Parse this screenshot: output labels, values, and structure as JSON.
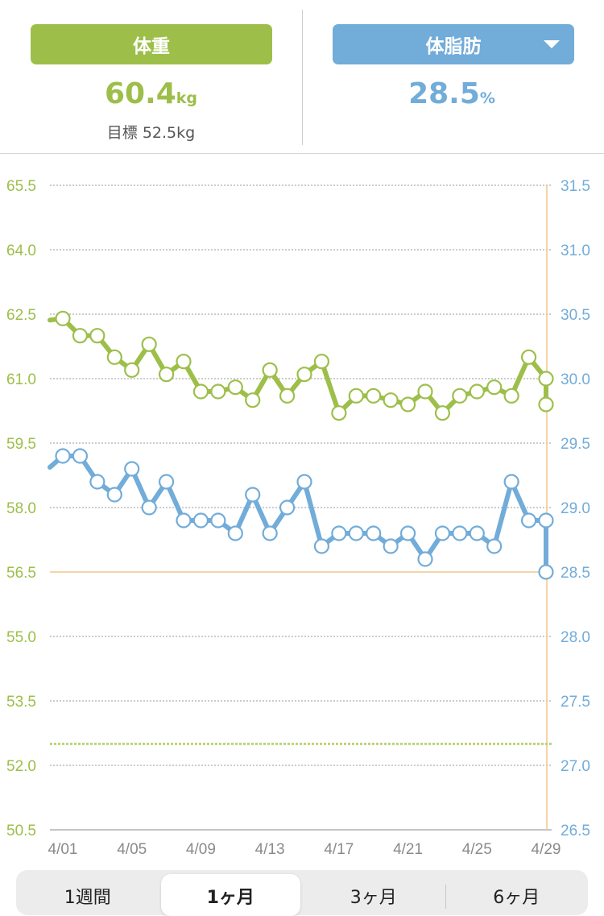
{
  "header": {
    "weight": {
      "label": "体重",
      "value": "60.4",
      "unit": "kg",
      "goal": "目標 52.5kg"
    },
    "bodyfat": {
      "label": "体脂肪",
      "value": "28.5",
      "unit": "%",
      "dropdown_icon": "caret-down"
    }
  },
  "colors": {
    "weight": "#9dbf4a",
    "bodyfat": "#72acd9",
    "current_line": "#f2c58a",
    "grid": "#9a9a9a"
  },
  "chart_data": {
    "type": "line",
    "x": [
      "4/01",
      "4/02",
      "4/03",
      "4/04",
      "4/05",
      "4/06",
      "4/07",
      "4/08",
      "4/09",
      "4/10",
      "4/11",
      "4/12",
      "4/13",
      "4/14",
      "4/15",
      "4/16",
      "4/17",
      "4/18",
      "4/19",
      "4/20",
      "4/21",
      "4/22",
      "4/23",
      "4/24",
      "4/25",
      "4/26",
      "4/27",
      "4/28",
      "4/29",
      "4/30"
    ],
    "x_tick_labels": [
      "4/01",
      "4/05",
      "4/09",
      "4/13",
      "4/17",
      "4/21",
      "4/25",
      "4/29"
    ],
    "series": [
      {
        "axis": "left",
        "values": [
          62.4,
          62.0,
          62.0,
          61.5,
          61.2,
          61.8,
          61.1,
          61.4,
          60.7,
          60.7,
          60.8,
          60.5,
          61.2,
          60.6,
          61.1,
          61.4,
          60.2,
          60.6,
          60.6,
          60.5,
          60.4,
          60.7,
          60.2,
          60.6,
          60.7,
          60.8,
          60.6,
          61.5,
          61.0,
          60.4
        ]
      },
      {
        "axis": "right",
        "values": [
          29.4,
          29.4,
          29.2,
          29.1,
          29.3,
          29.0,
          29.2,
          28.9,
          28.9,
          28.9,
          28.8,
          29.1,
          28.8,
          29.0,
          29.2,
          28.7,
          28.8,
          28.8,
          28.8,
          28.7,
          28.8,
          28.6,
          28.8,
          28.8,
          28.8,
          28.7,
          29.2,
          28.9,
          28.9,
          28.5
        ]
      }
    ],
    "y_left": {
      "ticks": [
        "65.5",
        "64.0",
        "62.5",
        "61.0",
        "59.5",
        "58.0",
        "56.5",
        "55.0",
        "53.5",
        "52.0",
        "50.5"
      ],
      "ylim": [
        50.5,
        65.5
      ]
    },
    "y_right": {
      "ticks": [
        "31.5",
        "31.0",
        "30.5",
        "30.0",
        "29.5",
        "29.0",
        "28.5",
        "28.0",
        "27.5",
        "27.0",
        "26.5"
      ],
      "ylim": [
        26.5,
        31.5
      ]
    },
    "goal_line": 52.5,
    "current_value_line": 28.5,
    "grid": true
  },
  "period_tabs": [
    {
      "label": "1週間",
      "active": false
    },
    {
      "label": "1ヶ月",
      "active": true
    },
    {
      "label": "3ヶ月",
      "active": false
    },
    {
      "label": "6ヶ月",
      "active": false
    }
  ]
}
